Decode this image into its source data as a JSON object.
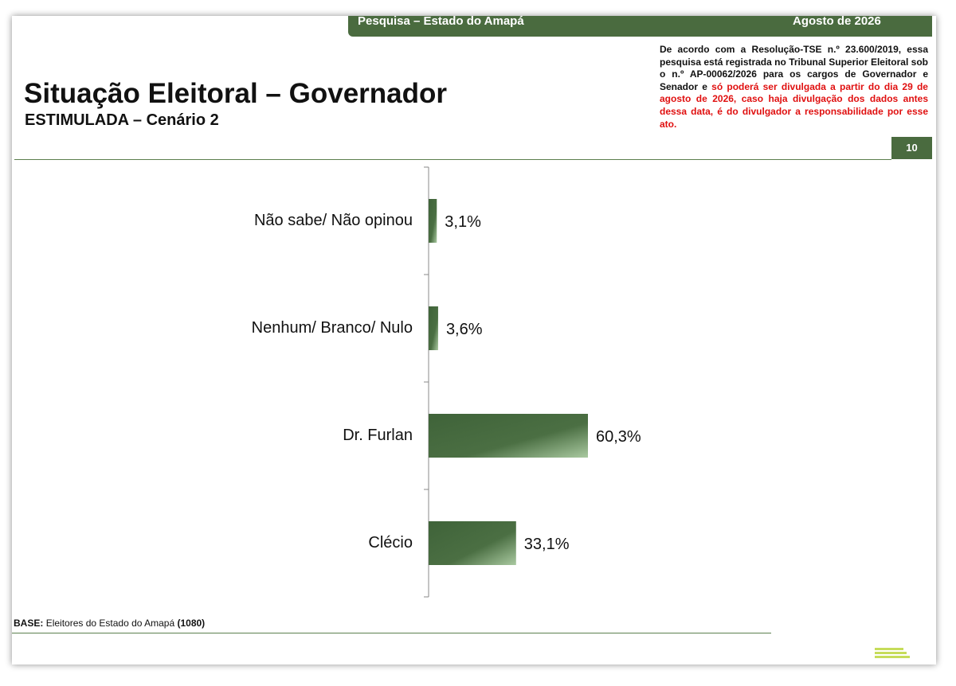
{
  "header": {
    "band_left": "Pesquisa – Estado do Amapá",
    "band_right": "Agosto de 2026",
    "title": "Situação Eleitoral – Governador",
    "subtitle": "ESTIMULADA – Cenário 2",
    "notice": "De acordo com a Resolução-TSE n.º 23.600/2019, essa pesquisa está registrada no Tribunal Superior Eleitoral sob o n.º AP-00062/2026 para os cargos de Governador e Senador e",
    "notice_warning": "só poderá ser divulgada a partir do dia 29 de agosto de 2026, caso haja divulgação dos dados antes dessa data, é do divulgador a responsabilidade por esse ato.",
    "page_number": "10"
  },
  "chart_data": {
    "type": "bar",
    "orientation": "horizontal",
    "color": "#3f6339",
    "categories": [
      "Não sabe/ Não opinou",
      "Nenhum/ Branco/ Nulo",
      "Dr. Furlan",
      "Clécio"
    ],
    "values": [
      3.1,
      3.6,
      60.3,
      33.1
    ],
    "value_labels": [
      "3,1%",
      "3,6%",
      "60,3%",
      "33,1%"
    ]
  },
  "footer": {
    "base_label": "BASE:",
    "base_text": "Eleitores do Estado do Amapá",
    "base_count": "(1080)"
  }
}
